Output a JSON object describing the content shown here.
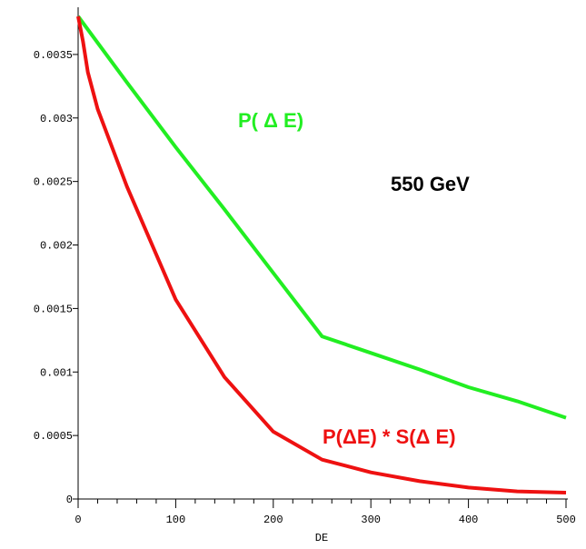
{
  "chart_data": {
    "type": "line",
    "x_label": "DE",
    "xlim": [
      0,
      500
    ],
    "xticks": [
      0,
      100,
      200,
      300,
      400,
      500
    ],
    "ylim": [
      0,
      0.0038
    ],
    "yticks": [
      0,
      0.0005,
      0.001,
      0.0015,
      0.002,
      0.0025,
      0.003,
      0.0035
    ],
    "grid": false,
    "series": [
      {
        "color": "#22ee22",
        "x": [
          0,
          50,
          100,
          150,
          200,
          250,
          300,
          350,
          400,
          450,
          500
        ],
        "values": [
          0.0038,
          0.00328,
          0.00277,
          0.00228,
          0.00178,
          0.00128,
          0.00115,
          0.00102,
          0.00088,
          0.00077,
          0.00064
        ]
      },
      {
        "color": "#ee1111",
        "x": [
          0,
          5,
          10,
          20,
          50,
          100,
          150,
          200,
          250,
          300,
          350,
          400,
          450,
          500
        ],
        "values": [
          0.0038,
          0.0036,
          0.00336,
          0.00307,
          0.00246,
          0.00157,
          0.00096,
          0.00053,
          0.00031,
          0.00021,
          0.00014,
          9e-05,
          6e-05,
          5e-05
        ]
      }
    ],
    "annotations": [
      {
        "text": "P( Δ E)",
        "color": "#22ee22"
      },
      {
        "text": "550 GeV",
        "color": "#000000"
      },
      {
        "text": "P(ΔE) * S(Δ E)",
        "color": "#ee1111"
      }
    ]
  }
}
